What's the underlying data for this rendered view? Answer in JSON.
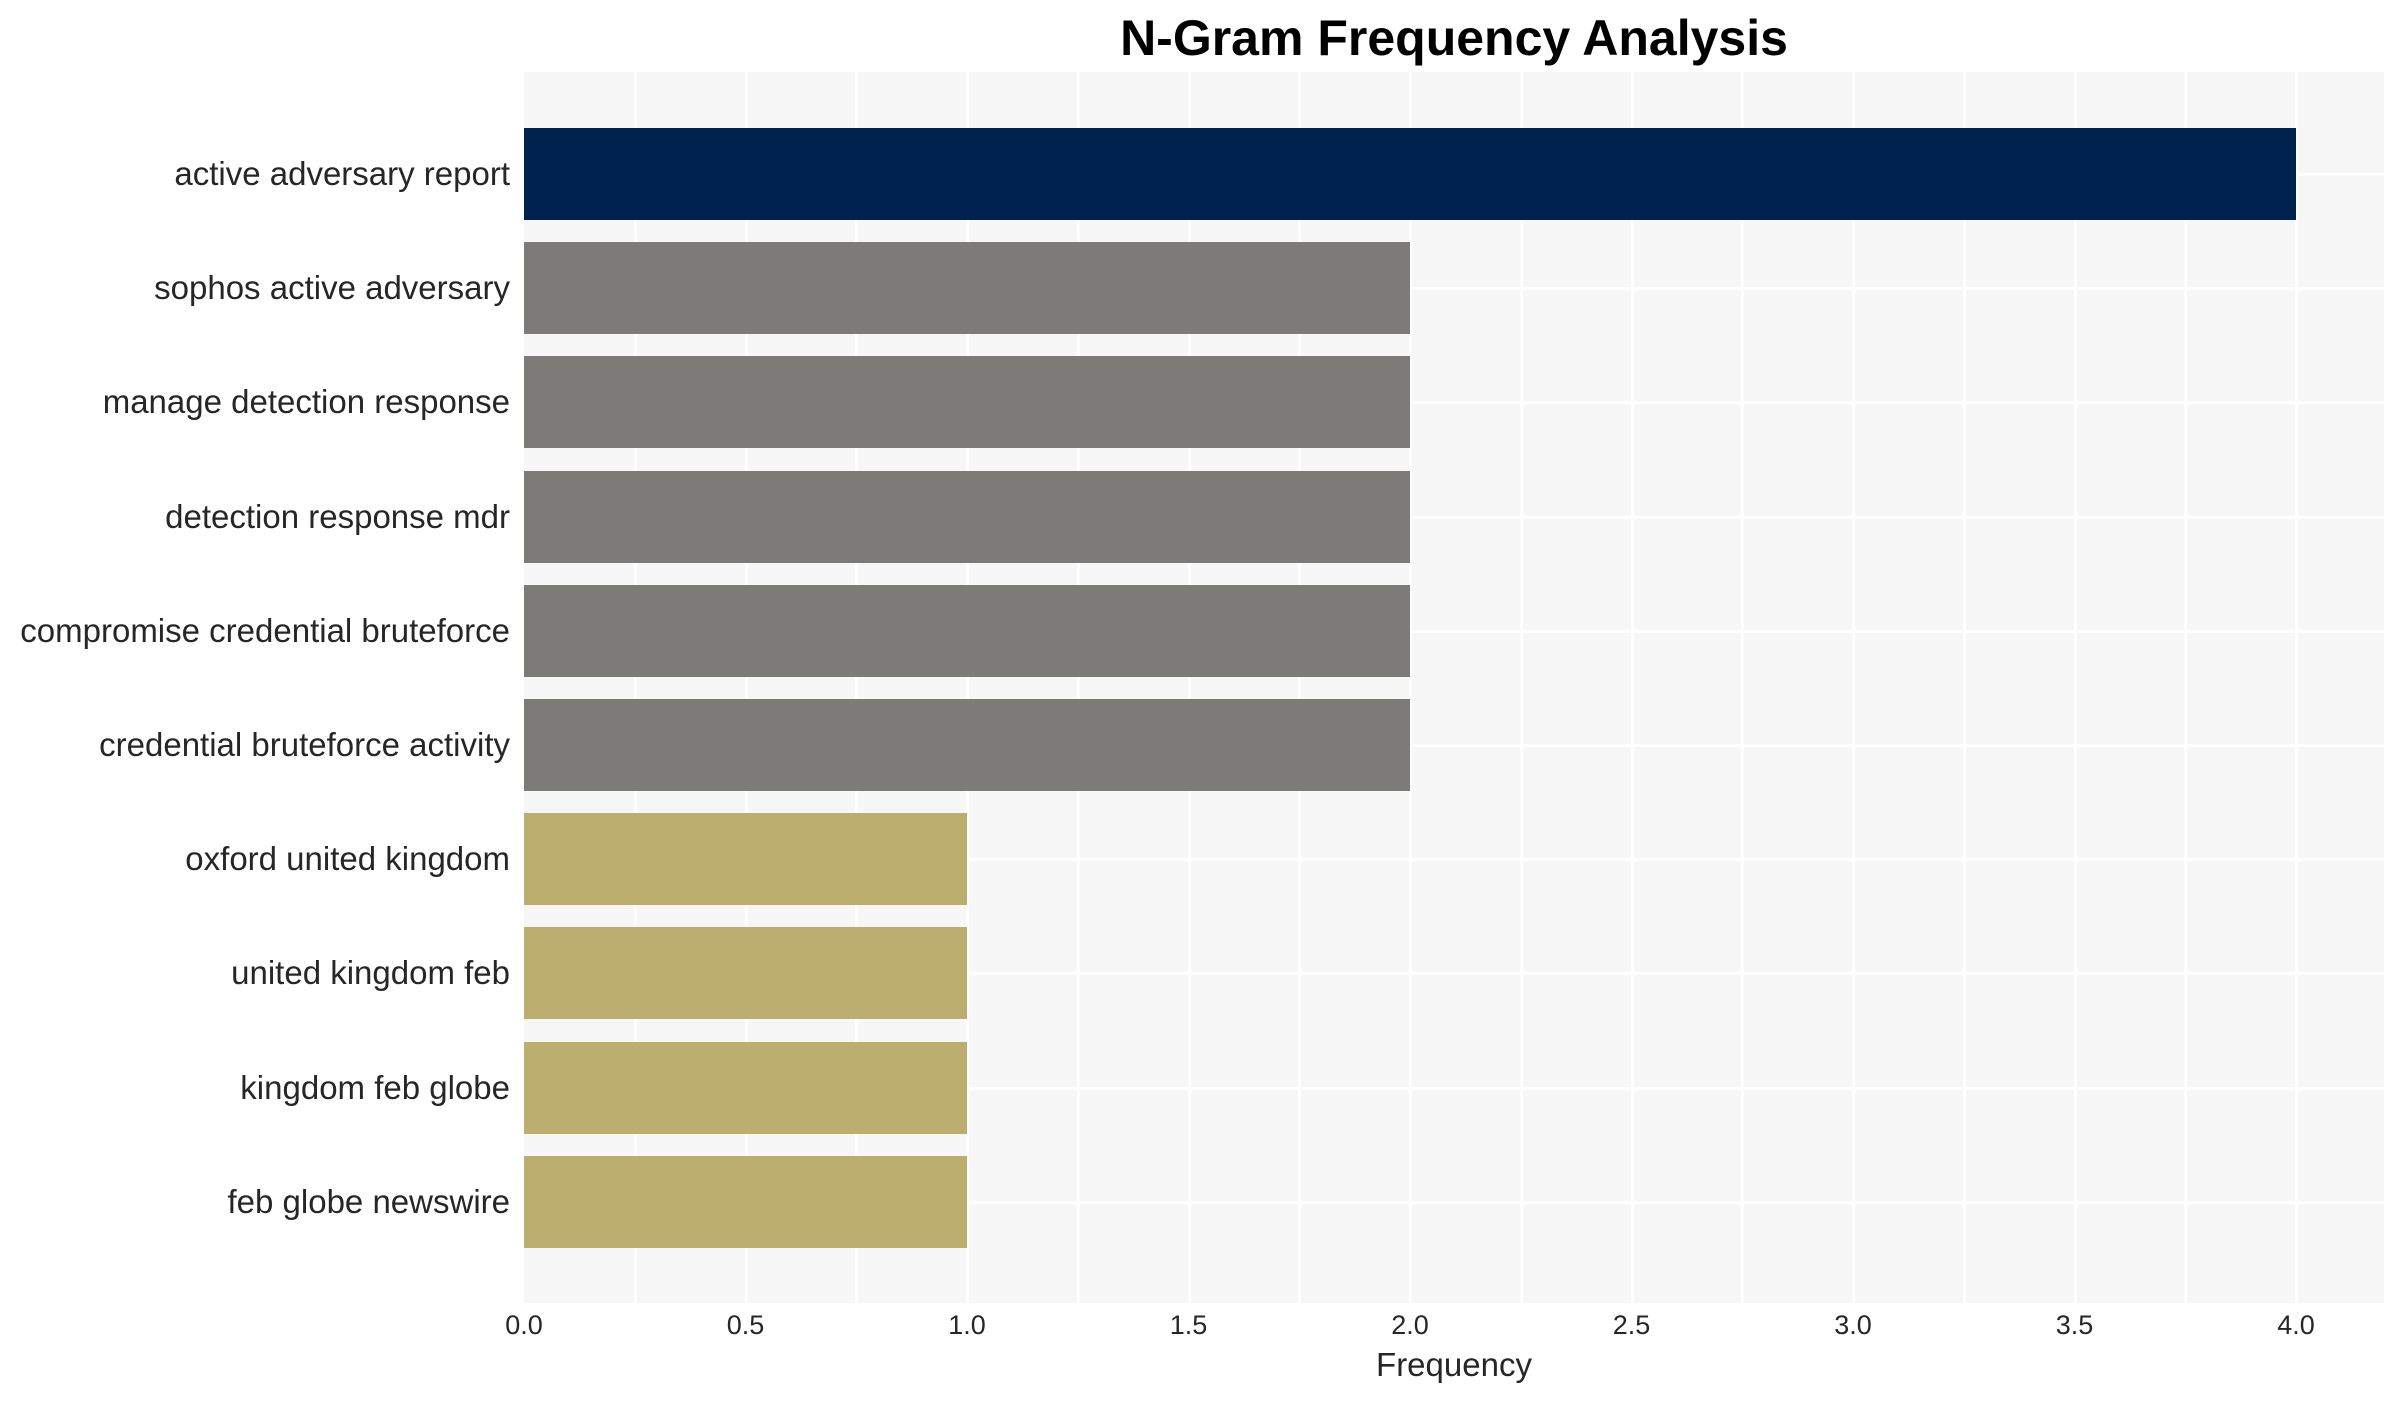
{
  "chart_data": {
    "type": "bar",
    "orientation": "horizontal",
    "title": "N-Gram Frequency Analysis",
    "xlabel": "Frequency",
    "ylabel": "",
    "xlim": [
      0,
      4.2
    ],
    "xticks": [
      "0.0",
      "0.5",
      "1.0",
      "1.5",
      "2.0",
      "2.5",
      "3.0",
      "3.5",
      "4.0"
    ],
    "grid": true,
    "legend": null,
    "categories": [
      "active adversary report",
      "sophos active adversary",
      "manage detection response",
      "detection response mdr",
      "compromise credential bruteforce",
      "credential bruteforce activity",
      "oxford united kingdom",
      "united kingdom feb",
      "kingdom feb globe",
      "feb globe newswire"
    ],
    "values": [
      4,
      2,
      2,
      2,
      2,
      2,
      1,
      1,
      1,
      1
    ],
    "colors": [
      "#00224e",
      "#7c7b78",
      "#7c7b78",
      "#7c7b78",
      "#7c7b78",
      "#7c7b78",
      "#bcae6e",
      "#bcae6e",
      "#bcae6e",
      "#bcae6e"
    ]
  },
  "style": {
    "plot_background": "#f7f7f7",
    "grid_color": "#ffffff"
  }
}
